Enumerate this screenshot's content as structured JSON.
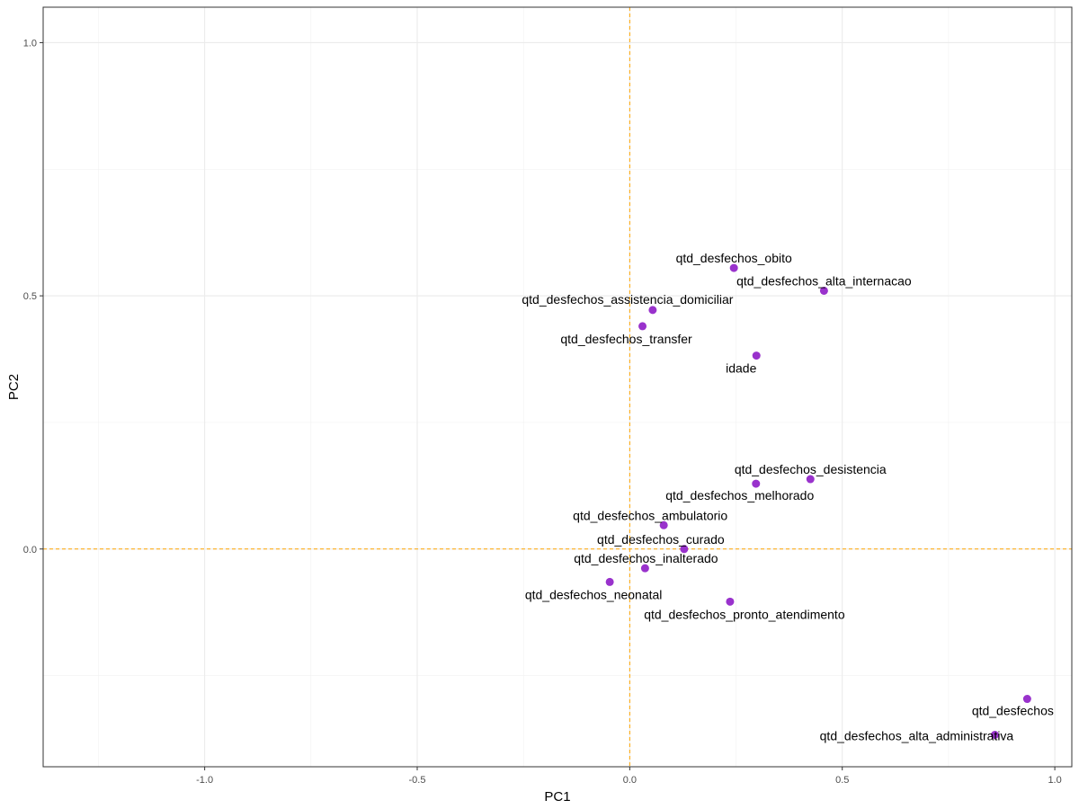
{
  "chart_data": {
    "type": "scatter",
    "xlabel": "PC1",
    "ylabel": "PC2",
    "xlim": [
      -1.38,
      1.04
    ],
    "ylim": [
      -0.43,
      1.07
    ],
    "x_ticks": [
      -1.0,
      -0.5,
      0.0,
      0.5,
      1.0
    ],
    "x_tick_labels": [
      "-1.0",
      "-0.5",
      "0.0",
      "0.5",
      "1.0"
    ],
    "y_ticks": [
      0.0,
      0.5,
      1.0
    ],
    "y_tick_labels": [
      "0.0",
      "0.5",
      "1.0"
    ],
    "grid": true,
    "reference_lines": {
      "x": 0,
      "y": 0,
      "style": "dashed",
      "color": "#ffa500"
    },
    "point_color": "#9932cc",
    "points": [
      {
        "label": "qtd_desfechos_obito",
        "x": 0.245,
        "y": 0.555
      },
      {
        "label": "qtd_desfechos_alta_internacao",
        "x": 0.457,
        "y": 0.51
      },
      {
        "label": "qtd_desfechos_assistencia_domiciliar",
        "x": 0.054,
        "y": 0.472
      },
      {
        "label": "qtd_desfechos_transfer",
        "x": 0.03,
        "y": 0.44
      },
      {
        "label": "idade",
        "x": 0.298,
        "y": 0.382
      },
      {
        "label": "qtd_desfechos_desistencia",
        "x": 0.425,
        "y": 0.138
      },
      {
        "label": "qtd_desfechos_melhorado",
        "x": 0.297,
        "y": 0.129
      },
      {
        "label": "qtd_desfechos_ambulatorio",
        "x": 0.08,
        "y": 0.047
      },
      {
        "label": "qtd_desfechos_curado",
        "x": 0.128,
        "y": 0.0
      },
      {
        "label": "qtd_desfechos_inalterado",
        "x": 0.036,
        "y": -0.038
      },
      {
        "label": "qtd_desfechos_neonatal",
        "x": -0.047,
        "y": -0.065
      },
      {
        "label": "qtd_desfechos_pronto_atendimento",
        "x": 0.236,
        "y": -0.104
      },
      {
        "label": "qtd_desfechos",
        "x": 0.935,
        "y": -0.296
      },
      {
        "label": "qtd_desfechos_alta_administrativa",
        "x": 0.859,
        "y": -0.367
      }
    ]
  }
}
